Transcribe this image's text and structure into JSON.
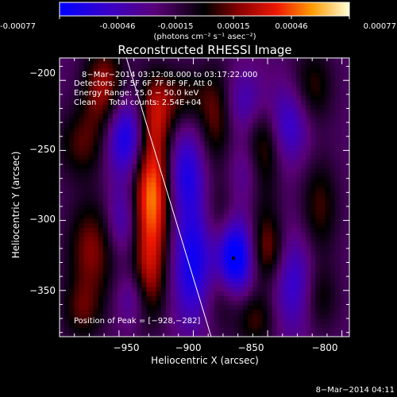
{
  "colorbar": {
    "ticks": [
      "-0.00077",
      "-0.00046",
      "-0.00015",
      "0.00015",
      "0.00046",
      "0.00077"
    ],
    "unit_label": "(photons cm⁻² s⁻¹ asec⁻²)",
    "range": [
      -0.00077,
      0.00077
    ]
  },
  "chart_data": {
    "type": "heatmap",
    "title": "Reconstructed RHESSI Image",
    "xlabel": "Heliocentric X (arcsec)",
    "ylabel": "Heliocentric Y (arcsec)",
    "xlim": [
      -990,
      -795
    ],
    "ylim": [
      -383,
      -184
    ],
    "x_ticks": [
      -950,
      -900,
      -850,
      -800
    ],
    "x_tick_labels": [
      "−950",
      "−900",
      "−850",
      "−800"
    ],
    "y_ticks": [
      -200,
      -250,
      -300,
      -350
    ],
    "y_tick_labels": [
      "−200",
      "−250",
      "−300",
      "−350"
    ],
    "info_lines": [
      "8−Mar−2014 03:12:08.000 to 03:17:22.000",
      "Detectors: 3F 5F 6F 7F 8F 9F, Att 0",
      "Energy Range: 25.0 − 50.0 keV",
      "Clean     Total counts: 2.54E+04"
    ],
    "peak_label": "Position of Peak = [−928,−282]",
    "peak": [
      -928,
      -282
    ],
    "limb": [
      [
        -945,
        -184
      ],
      [
        -888,
        -383
      ]
    ],
    "marker": [
      -873,
      -327
    ],
    "blobs": [
      {
        "x": -960,
        "y": -205,
        "v": 0.00046,
        "sx": 10,
        "sy": 22
      },
      {
        "x": -975,
        "y": -245,
        "v": 0.0003,
        "sx": 12,
        "sy": 18
      },
      {
        "x": -968,
        "y": -320,
        "v": 0.0004,
        "sx": 12,
        "sy": 25
      },
      {
        "x": -975,
        "y": -365,
        "v": 0.00028,
        "sx": 10,
        "sy": 16
      },
      {
        "x": -945,
        "y": -240,
        "v": -0.00055,
        "sx": 10,
        "sy": 20
      },
      {
        "x": -948,
        "y": -300,
        "v": -0.0003,
        "sx": 8,
        "sy": 18
      },
      {
        "x": -940,
        "y": -355,
        "v": -0.00025,
        "sx": 8,
        "sy": 14
      },
      {
        "x": -928,
        "y": -282,
        "v": 0.00077,
        "sx": 9,
        "sy": 35
      },
      {
        "x": -925,
        "y": -220,
        "v": 0.0004,
        "sx": 9,
        "sy": 20
      },
      {
        "x": -930,
        "y": -345,
        "v": 0.00035,
        "sx": 8,
        "sy": 22
      },
      {
        "x": -905,
        "y": -210,
        "v": 0.00025,
        "sx": 10,
        "sy": 14
      },
      {
        "x": -905,
        "y": -265,
        "v": -0.0004,
        "sx": 9,
        "sy": 22
      },
      {
        "x": -900,
        "y": -330,
        "v": -0.0005,
        "sx": 10,
        "sy": 30
      },
      {
        "x": -885,
        "y": -225,
        "v": 0.00035,
        "sx": 8,
        "sy": 25
      },
      {
        "x": -882,
        "y": -300,
        "v": 0.00025,
        "sx": 8,
        "sy": 20
      },
      {
        "x": -880,
        "y": -350,
        "v": 0.0003,
        "sx": 9,
        "sy": 20
      },
      {
        "x": -865,
        "y": -215,
        "v": -0.00025,
        "sx": 10,
        "sy": 16
      },
      {
        "x": -860,
        "y": -265,
        "v": -0.00025,
        "sx": 10,
        "sy": 16
      },
      {
        "x": -853,
        "y": -255,
        "v": 0.00045,
        "sx": 8,
        "sy": 25
      },
      {
        "x": -850,
        "y": -320,
        "v": 0.0004,
        "sx": 8,
        "sy": 18
      },
      {
        "x": -858,
        "y": -370,
        "v": 0.0003,
        "sx": 9,
        "sy": 15
      },
      {
        "x": -873,
        "y": -327,
        "v": -0.00077,
        "sx": 9,
        "sy": 20
      },
      {
        "x": -835,
        "y": -230,
        "v": -0.00035,
        "sx": 10,
        "sy": 20
      },
      {
        "x": -820,
        "y": -205,
        "v": 0.0003,
        "sx": 10,
        "sy": 20
      },
      {
        "x": -815,
        "y": -290,
        "v": 0.0003,
        "sx": 9,
        "sy": 25
      },
      {
        "x": -815,
        "y": -355,
        "v": 0.00025,
        "sx": 9,
        "sy": 18
      },
      {
        "x": -832,
        "y": -345,
        "v": -0.00035,
        "sx": 10,
        "sy": 25
      }
    ]
  },
  "footer": {
    "timestamp": "8−Mar−2014 04:11"
  }
}
